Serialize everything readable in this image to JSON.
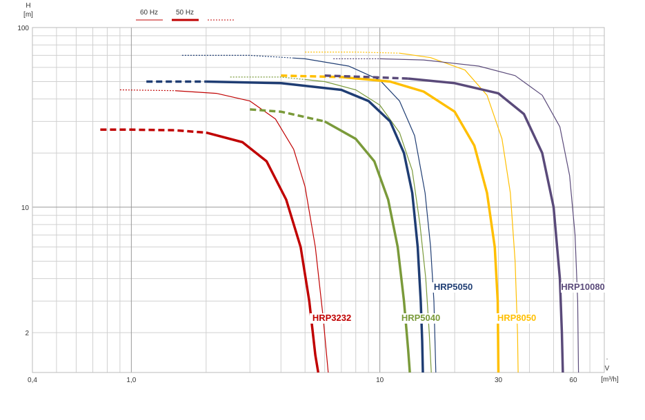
{
  "chart_data": {
    "type": "line",
    "x_scale": "log",
    "y_scale": "log",
    "xlim": [
      0.4,
      80
    ],
    "ylim": [
      1.2,
      100
    ],
    "grid": true,
    "x_ticks": [
      {
        "value": 0.4,
        "label": "0,4"
      },
      {
        "value": 1,
        "label": "1,0"
      },
      {
        "value": 10,
        "label": "10"
      },
      {
        "value": 30,
        "label": "30"
      },
      {
        "value": 60,
        "label": "60"
      }
    ],
    "y_ticks": [
      {
        "value": 100,
        "label": "100"
      },
      {
        "value": 10,
        "label": "10"
      },
      {
        "value": 2,
        "label": "2"
      }
    ],
    "xlabel": {
      "symbol": "V",
      "unit": "[m³/h]"
    },
    "ylabel": {
      "symbol": "H",
      "unit": "[m]"
    },
    "legend": {
      "placement": "top-left",
      "entries": [
        {
          "label": "60 Hz",
          "style": "thin"
        },
        {
          "label": "50 Hz",
          "style": "thick"
        },
        {
          "label": "",
          "style": "dotted"
        }
      ]
    },
    "series": [
      {
        "name": "HRP3232",
        "color": "#c00000",
        "hz50": {
          "dashed_end_x": 2.0,
          "points": [
            [
              0.75,
              27
            ],
            [
              1.0,
              27
            ],
            [
              1.5,
              26.8
            ],
            [
              2.0,
              26
            ],
            [
              2.8,
              23
            ],
            [
              3.5,
              18
            ],
            [
              4.2,
              11
            ],
            [
              4.8,
              6
            ],
            [
              5.2,
              3
            ],
            [
              5.5,
              1.5
            ],
            [
              5.65,
              1.2
            ]
          ]
        },
        "hz60": {
          "dashed_end_x": 1.5,
          "points": [
            [
              0.9,
              45
            ],
            [
              1.5,
              44.5
            ],
            [
              2.2,
              43
            ],
            [
              3.0,
              39
            ],
            [
              3.8,
              31
            ],
            [
              4.5,
              21
            ],
            [
              5.0,
              13
            ],
            [
              5.5,
              6
            ],
            [
              5.9,
              2.5
            ],
            [
              6.2,
              1.2
            ]
          ]
        }
      },
      {
        "name": "HRP5040",
        "color": "#7a9a3a",
        "hz50": {
          "dashed_end_x": 6.0,
          "points": [
            [
              3.0,
              35
            ],
            [
              4.0,
              34
            ],
            [
              6.0,
              30
            ],
            [
              8.0,
              24
            ],
            [
              9.5,
              18
            ],
            [
              10.8,
              11
            ],
            [
              11.8,
              6
            ],
            [
              12.5,
              3
            ],
            [
              13.0,
              1.6
            ],
            [
              13.2,
              1.2
            ]
          ]
        },
        "hz60": {
          "dashed_end_x": 5.0,
          "points": [
            [
              2.5,
              53
            ],
            [
              4.0,
              53
            ],
            [
              6.0,
              50
            ],
            [
              8.0,
              45
            ],
            [
              10.0,
              37
            ],
            [
              12.0,
              26
            ],
            [
              13.5,
              16
            ],
            [
              14.5,
              8
            ],
            [
              15.3,
              4
            ],
            [
              15.8,
              2
            ],
            [
              16.1,
              1.2
            ]
          ]
        }
      },
      {
        "name": "HRP5050",
        "color": "#1f3d73",
        "hz50": {
          "dashed_end_x": 2.0,
          "points": [
            [
              1.15,
              50
            ],
            [
              2.0,
              50
            ],
            [
              4.0,
              49
            ],
            [
              7.0,
              45
            ],
            [
              9.0,
              39
            ],
            [
              11.0,
              30
            ],
            [
              12.5,
              20
            ],
            [
              13.5,
              12
            ],
            [
              14.2,
              6
            ],
            [
              14.6,
              3
            ],
            [
              14.8,
              1.8
            ],
            [
              14.9,
              1.2
            ]
          ]
        },
        "hz60": {
          "dashed_end_x": 4.5,
          "points": [
            [
              1.6,
              70
            ],
            [
              3.0,
              70
            ],
            [
              5.0,
              67
            ],
            [
              7.5,
              61
            ],
            [
              10.0,
              51
            ],
            [
              12.0,
              39
            ],
            [
              13.8,
              25
            ],
            [
              15.2,
              12
            ],
            [
              16.0,
              6
            ],
            [
              16.5,
              3
            ],
            [
              16.8,
              1.2
            ]
          ]
        }
      },
      {
        "name": "HRP8050",
        "color": "#ffbf00",
        "hz50": {
          "dashed_end_x": 7.0,
          "points": [
            [
              4.0,
              54
            ],
            [
              7.0,
              53
            ],
            [
              11.0,
              50
            ],
            [
              15.0,
              44
            ],
            [
              20.0,
              34
            ],
            [
              24.0,
              22
            ],
            [
              27.0,
              12
            ],
            [
              29.0,
              6
            ],
            [
              29.8,
              3
            ],
            [
              30.0,
              1.2
            ]
          ]
        },
        "hz60": {
          "dashed_end_x": 12.0,
          "points": [
            [
              5.0,
              73
            ],
            [
              8.0,
              73
            ],
            [
              12.0,
              72
            ],
            [
              16.0,
              68
            ],
            [
              22.0,
              58
            ],
            [
              27.0,
              42
            ],
            [
              31.0,
              24
            ],
            [
              33.5,
              12
            ],
            [
              35.0,
              5
            ],
            [
              35.8,
              2
            ],
            [
              36.0,
              1.2
            ]
          ]
        }
      },
      {
        "name": "HRP10080",
        "color": "#5a4a7a",
        "hz50": {
          "dashed_end_x": 13.0,
          "points": [
            [
              6.0,
              54
            ],
            [
              9.0,
              53
            ],
            [
              13.0,
              52
            ],
            [
              20.0,
              49
            ],
            [
              30.0,
              43
            ],
            [
              38.0,
              33
            ],
            [
              45.0,
              20
            ],
            [
              50.0,
              10
            ],
            [
              53.0,
              4
            ],
            [
              54.0,
              2
            ],
            [
              54.5,
              1.2
            ]
          ]
        },
        "hz60": {
          "dashed_end_x": 10.0,
          "points": [
            [
              6.5,
              67
            ],
            [
              10.0,
              67
            ],
            [
              15.0,
              66
            ],
            [
              25.0,
              61
            ],
            [
              35.0,
              54
            ],
            [
              45.0,
              42
            ],
            [
              53.0,
              28
            ],
            [
              58.0,
              15
            ],
            [
              61.0,
              7
            ],
            [
              62.5,
              3
            ],
            [
              63.0,
              1.2
            ]
          ]
        }
      }
    ]
  }
}
